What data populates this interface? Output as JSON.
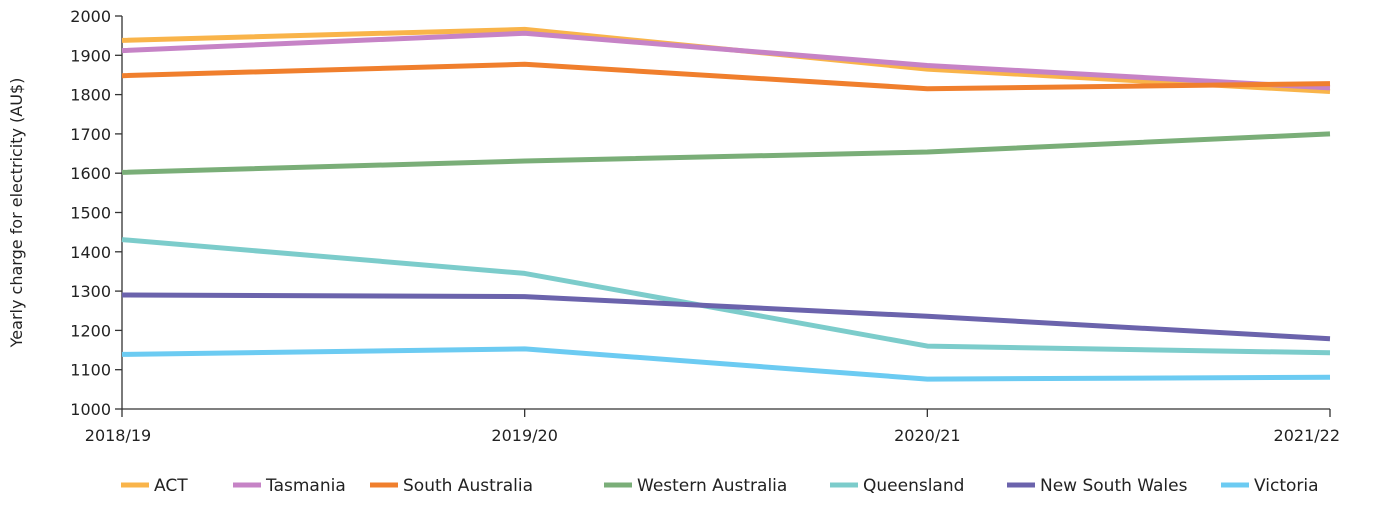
{
  "chart_data": {
    "type": "line",
    "title": "",
    "xlabel": "",
    "ylabel": "Yearly charge for electricity (AU$)",
    "categories": [
      "2018/19",
      "2019/20",
      "2020/21",
      "2021/22"
    ],
    "ylim": [
      1000,
      2000
    ],
    "yticks": [
      1000,
      1100,
      1200,
      1300,
      1400,
      1500,
      1600,
      1700,
      1800,
      1900,
      2000
    ],
    "grid": false,
    "legend_position": "bottom",
    "series": [
      {
        "name": "ACT",
        "color": "#F9B44A",
        "values": [
          1938,
          1966,
          1865,
          1808
        ]
      },
      {
        "name": "Tasmania",
        "color": "#C683C6",
        "values": [
          1912,
          1956,
          1874,
          1817
        ]
      },
      {
        "name": "South Australia",
        "color": "#F07F2D",
        "values": [
          1848,
          1877,
          1815,
          1828
        ]
      },
      {
        "name": "Western Australia",
        "color": "#7AAE78",
        "values": [
          1602,
          1631,
          1654,
          1700
        ]
      },
      {
        "name": "Queensland",
        "color": "#7CCCCB",
        "values": [
          1431,
          1345,
          1160,
          1143
        ]
      },
      {
        "name": "New South Wales",
        "color": "#6B63AC",
        "values": [
          1290,
          1286,
          1236,
          1179
        ]
      },
      {
        "name": "Victoria",
        "color": "#6CCBF2",
        "values": [
          1139,
          1153,
          1076,
          1081
        ]
      }
    ]
  }
}
